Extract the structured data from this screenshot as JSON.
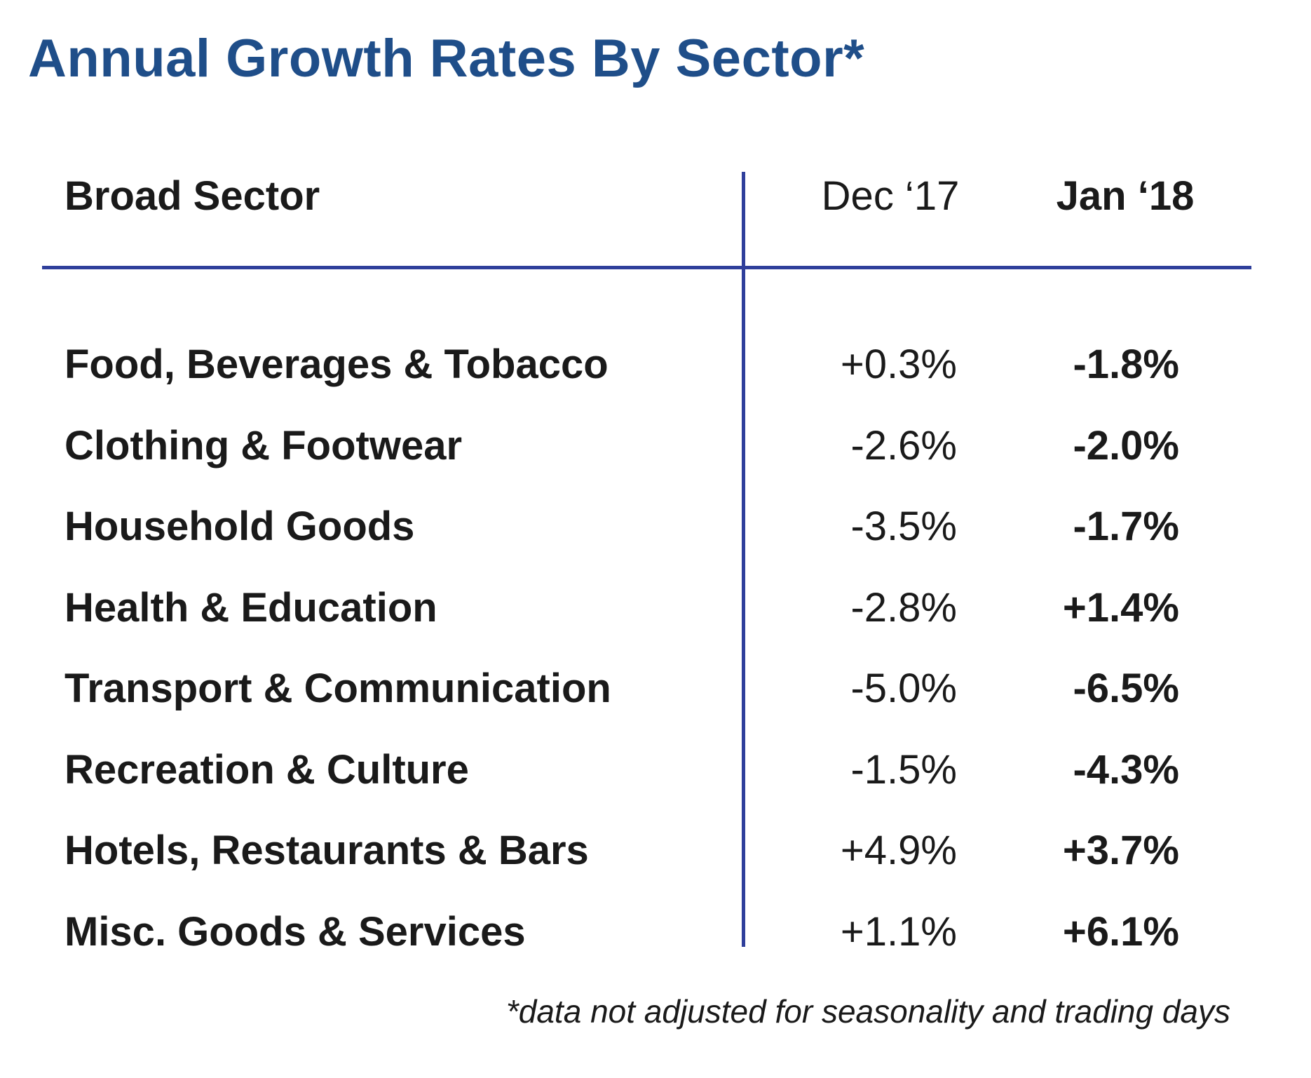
{
  "chart_data": {
    "type": "table",
    "title": "Annual Growth Rates By Sector*",
    "columns": [
      "Broad Sector",
      "Dec ‘17",
      "Jan ‘18"
    ],
    "rows": [
      {
        "sector": "Food, Beverages & Tobacco",
        "dec17": "+0.3%",
        "jan18": "-1.8%"
      },
      {
        "sector": "Clothing & Footwear",
        "dec17": "-2.6%",
        "jan18": "-2.0%"
      },
      {
        "sector": "Household Goods",
        "dec17": "-3.5%",
        "jan18": "-1.7%"
      },
      {
        "sector": "Health & Education",
        "dec17": "-2.8%",
        "jan18": "+1.4%"
      },
      {
        "sector": "Transport & Communication",
        "dec17": "-5.0%",
        "jan18": "-6.5%"
      },
      {
        "sector": "Recreation & Culture",
        "dec17": "-1.5%",
        "jan18": "-4.3%"
      },
      {
        "sector": "Hotels, Restaurants & Bars",
        "dec17": "+4.9%",
        "jan18": "+3.7%"
      },
      {
        "sector": "Misc. Goods & Services",
        "dec17": "+1.1%",
        "jan18": "+6.1%"
      }
    ],
    "footnote": "*data not adjusted for seasonality and trading days"
  },
  "colors": {
    "title": "#1f4e89",
    "rule": "#2f3f9b",
    "text": "#1a1a1a"
  }
}
